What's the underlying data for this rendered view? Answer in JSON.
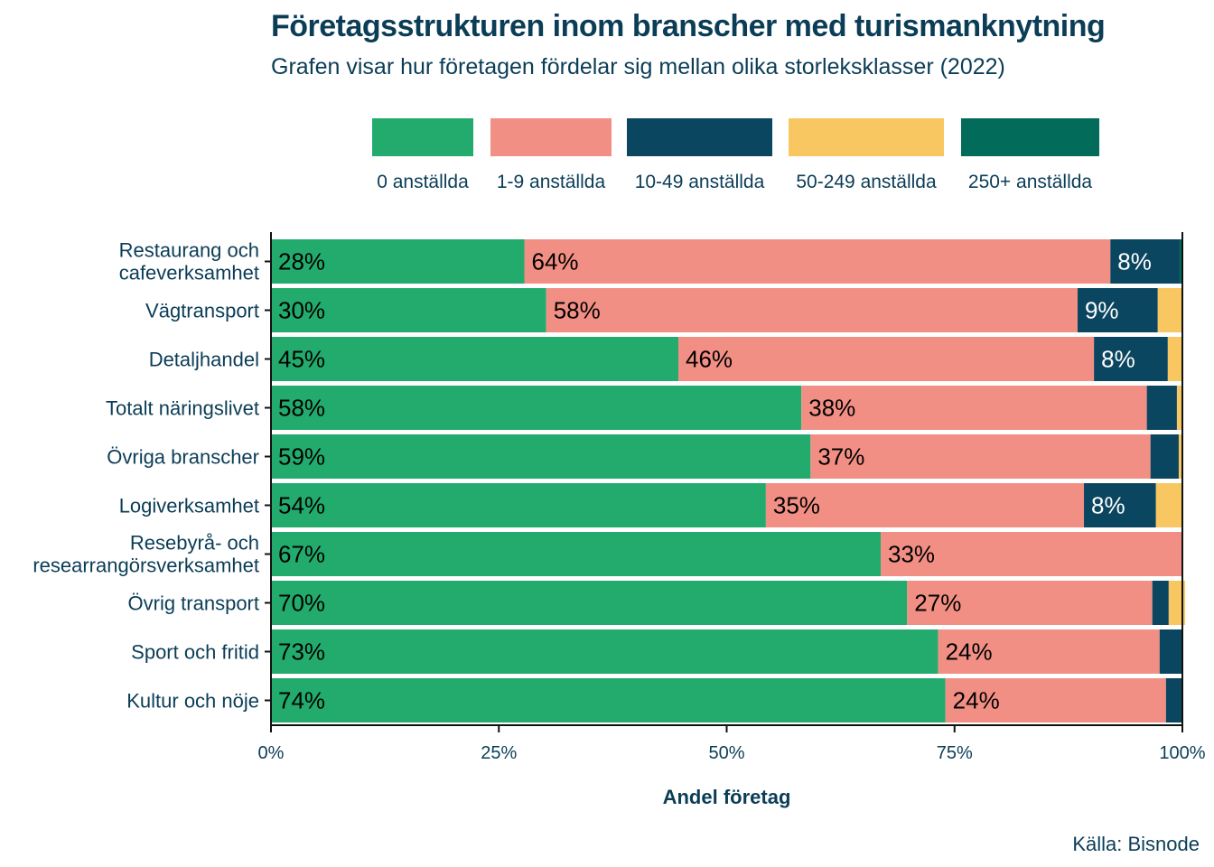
{
  "chart_data": {
    "type": "bar",
    "orientation": "horizontal",
    "stacked": true,
    "title": "Företagsstrukturen inom branscher med turismanknytning",
    "subtitle": "Grafen visar hur företagen fördelar sig mellan olika storleksklasser (2022)",
    "xlabel": "Andel företag",
    "ylabel": "",
    "xlim": [
      0,
      100
    ],
    "x_ticks": [
      "0%",
      "25%",
      "50%",
      "75%",
      "100%"
    ],
    "legend_position": "top",
    "grid": false,
    "categories": [
      [
        "Restaurang och",
        "cafeverksamhet"
      ],
      [
        "Vägtransport"
      ],
      [
        "Detaljhandel"
      ],
      [
        "Totalt näringslivet"
      ],
      [
        "Övriga branscher"
      ],
      [
        "Logiverksamhet"
      ],
      [
        "Resebyrå- och",
        "researrangörsverksamhet"
      ],
      [
        "Övrig transport"
      ],
      [
        "Sport och fritid"
      ],
      [
        "Kultur och nöje"
      ]
    ],
    "series": [
      {
        "name": "0 anställda",
        "color": "#22ab6d",
        "label_color": "#000000",
        "values": [
          27.8,
          30.2,
          44.7,
          58.2,
          59.2,
          54.3,
          66.9,
          69.8,
          73.2,
          74.0
        ],
        "labels": [
          "28%",
          "30%",
          "45%",
          "58%",
          "59%",
          "54%",
          "67%",
          "70%",
          "73%",
          "74%"
        ]
      },
      {
        "name": "1-9 anställda",
        "color": "#f28f84",
        "label_color": "#000000",
        "values": [
          64.3,
          58.3,
          45.6,
          37.9,
          37.3,
          34.9,
          33.1,
          26.9,
          24.3,
          24.2
        ],
        "labels": [
          "64%",
          "58%",
          "46%",
          "38%",
          "37%",
          "35%",
          "33%",
          "27%",
          "24%",
          "24%"
        ]
      },
      {
        "name": "10-49 anställda",
        "color": "#0b4660",
        "label_color": "#ffffff",
        "values": [
          7.6,
          8.8,
          8.1,
          3.3,
          3.1,
          7.9,
          0.0,
          1.8,
          2.5,
          1.8
        ],
        "labels": [
          "8%",
          "9%",
          "8%",
          "",
          "",
          "8%",
          "",
          "",
          "",
          ""
        ]
      },
      {
        "name": "50-249 anställda",
        "color": "#f8c762",
        "label_color": "#000000",
        "values": [
          0.0,
          2.7,
          1.6,
          0.6,
          0.3,
          2.9,
          0.0,
          1.8,
          0.0,
          0.0
        ],
        "labels": [
          "",
          "",
          "",
          "",
          "",
          "",
          "",
          "",
          "",
          ""
        ]
      },
      {
        "name": "250+ anställda",
        "color": "#026b5a",
        "label_color": "#ffffff",
        "values": [
          0.3,
          0.0,
          0.0,
          0.0,
          0.1,
          0.0,
          0.0,
          0.0,
          0.0,
          0.0
        ],
        "labels": [
          "",
          "",
          "",
          "",
          "",
          "",
          "",
          "",
          "",
          ""
        ]
      }
    ],
    "source": "Källa: Bisnode"
  }
}
